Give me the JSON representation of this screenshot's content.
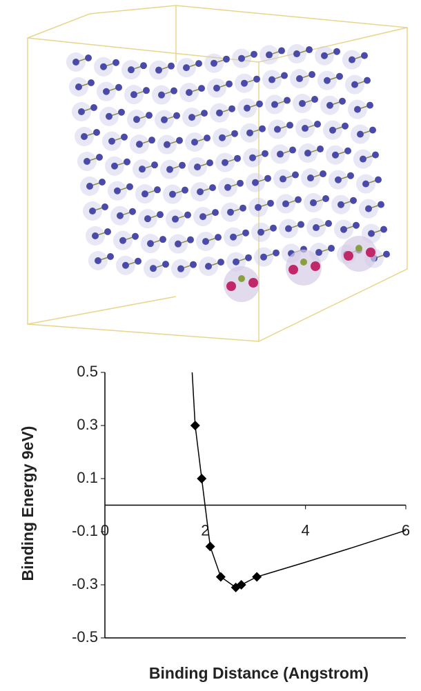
{
  "chart_data": {
    "type": "scatter",
    "x_label": "Binding Distance (Angstrom)",
    "y_label": "Binding Energy 9eV)",
    "xlim": [
      0,
      6
    ],
    "xticks": [
      0,
      2,
      4,
      6
    ],
    "ylim": [
      -0.5,
      0.5
    ],
    "yticks": [
      0.5,
      0.3,
      0.1,
      -0.1,
      -0.3,
      -0.5
    ],
    "series": [
      {
        "color": "#000000",
        "marker": "diamond",
        "x": [
          1.8,
          1.93,
          2.1,
          2.31,
          2.61,
          2.72,
          3.03
        ],
        "values": [
          0.3,
          0.1,
          -0.156,
          -0.27,
          -0.31,
          -0.3,
          -0.27
        ]
      },
      {
        "color": "#000000",
        "marker": "none",
        "x": [
          1.74,
          1.8,
          1.93,
          2.1,
          2.31,
          2.61,
          2.72,
          3.03,
          4,
          5,
          6
        ],
        "values": [
          0.5,
          0.3,
          0.1,
          -0.156,
          -0.27,
          -0.31,
          -0.3,
          -0.27,
          -0.215,
          -0.156,
          -0.095
        ]
      }
    ]
  }
}
